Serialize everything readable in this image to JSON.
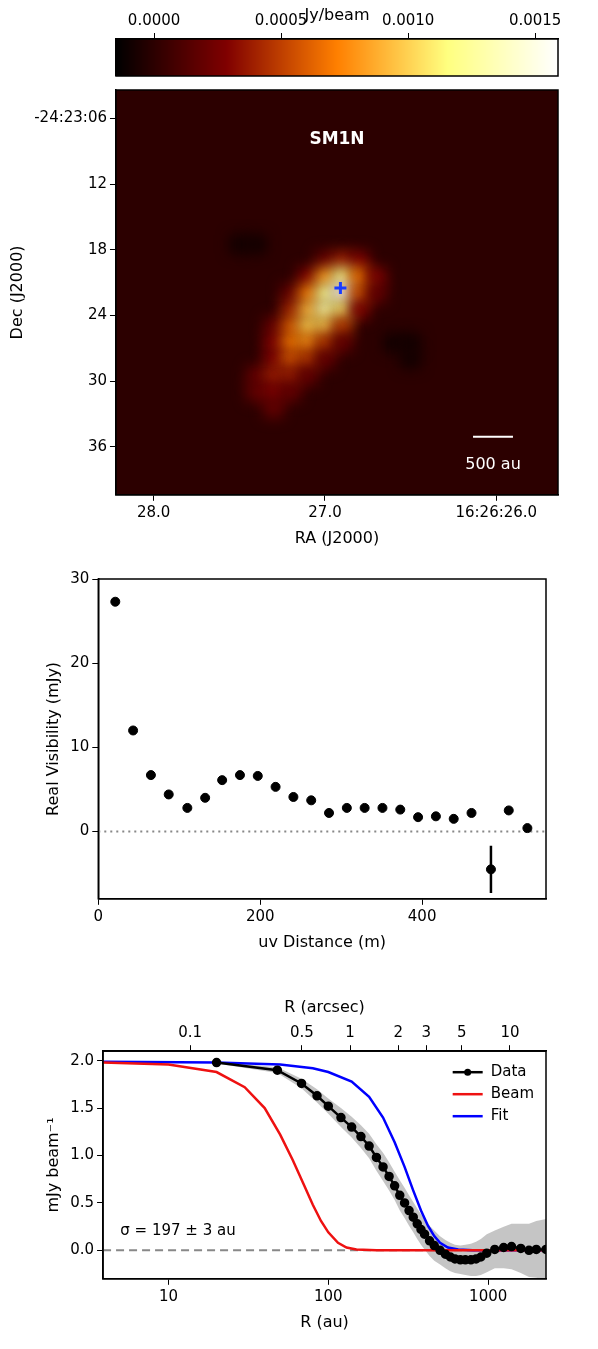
{
  "chart_data": [
    {
      "type": "heatmap",
      "title": "SM1N",
      "x_label": "RA (J2000)",
      "y_label": "Dec (J2000)",
      "xlim": [
        28.22,
        25.64
      ],
      "xticks": [
        {
          "value": 28,
          "label": "28.0"
        },
        {
          "value": 27,
          "label": "27.0"
        },
        {
          "value": 26,
          "label": "16:26:26.0"
        }
      ],
      "ylim": [
        40.4,
        3.4
      ],
      "yticks": [
        {
          "value": 6,
          "label": "-24:23:06"
        },
        {
          "value": 12,
          "label": "12"
        },
        {
          "value": 18,
          "label": "18"
        },
        {
          "value": 24,
          "label": "24"
        },
        {
          "value": 30,
          "label": "30"
        },
        {
          "value": 36,
          "label": "36"
        }
      ],
      "grid": false,
      "cells": [
        [
          27.5,
          17.5,
          -0.0001
        ],
        [
          27.4,
          17.5,
          -0.0001
        ],
        [
          27.0,
          19,
          0.0002
        ],
        [
          26.9,
          19,
          0.0004
        ],
        [
          26.8,
          19,
          0.0003
        ],
        [
          27.1,
          20.5,
          0.0003
        ],
        [
          27.0,
          20.5,
          0.0008
        ],
        [
          26.9,
          20.5,
          0.0012
        ],
        [
          26.8,
          20.5,
          0.0007
        ],
        [
          26.7,
          20.5,
          0.0003
        ],
        [
          27.2,
          22,
          0.0002
        ],
        [
          27.1,
          22,
          0.0007
        ],
        [
          27.0,
          22,
          0.0012
        ],
        [
          26.9,
          22,
          0.0016
        ],
        [
          26.8,
          22,
          0.0006
        ],
        [
          26.7,
          22,
          0.0002
        ],
        [
          27.2,
          23.5,
          0.0004
        ],
        [
          27.1,
          23.5,
          0.0009
        ],
        [
          27.0,
          23.5,
          0.0013
        ],
        [
          26.9,
          23.5,
          0.0011
        ],
        [
          26.8,
          23.5,
          0.0003
        ],
        [
          27.3,
          25,
          0.0002
        ],
        [
          27.2,
          25,
          0.0006
        ],
        [
          27.1,
          25,
          0.001
        ],
        [
          27.0,
          25,
          0.001
        ],
        [
          26.9,
          25,
          0.0005
        ],
        [
          27.3,
          26.5,
          0.0003
        ],
        [
          27.2,
          26.5,
          0.0007
        ],
        [
          27.1,
          26.5,
          0.0008
        ],
        [
          27.0,
          26.5,
          0.0005
        ],
        [
          26.9,
          26.5,
          0.0002
        ],
        [
          26.6,
          26.5,
          -0.0001
        ],
        [
          26.5,
          26.5,
          -0.0001
        ],
        [
          27.3,
          28,
          0.0003
        ],
        [
          27.2,
          28,
          0.0006
        ],
        [
          27.1,
          28,
          0.0005
        ],
        [
          27.0,
          28,
          0.0002
        ],
        [
          26.5,
          28,
          -0.0001
        ],
        [
          27.4,
          29.5,
          0.0002
        ],
        [
          27.3,
          29.5,
          0.0004
        ],
        [
          27.2,
          29.5,
          0.0004
        ],
        [
          27.1,
          29.5,
          0.0002
        ],
        [
          27.4,
          31,
          0.0002
        ],
        [
          27.3,
          31,
          0.0003
        ],
        [
          27.2,
          31,
          0.0002
        ],
        [
          27.3,
          32.5,
          0.0002
        ]
      ],
      "colorbar": {
        "label": "Jy/beam",
        "range": [
          -0.00015,
          0.00159
        ],
        "ticks": [
          {
            "value": 0,
            "label": "0.0000"
          },
          {
            "value": 0.0005,
            "label": "0.0005"
          },
          {
            "value": 0.001,
            "label": "0.0010"
          },
          {
            "value": 0.0015,
            "label": "0.0015"
          }
        ]
      },
      "peak": [
        26.91,
        21.5
      ],
      "peak_color": "#1a3cff",
      "scale_bar": {
        "label": "500 au",
        "length": 3.65
      }
    },
    {
      "type": "scatter",
      "x_label": "uv Distance (m)",
      "y_label": "Real Visibility (mJy)",
      "xlim": [
        0,
        553
      ],
      "xticks": [
        0,
        200,
        400
      ],
      "ylim": [
        -8,
        30
      ],
      "yticks": [
        0,
        10,
        20,
        30
      ],
      "grid": false,
      "hline": 0,
      "color": "#000000",
      "x": [
        21,
        43,
        65,
        87,
        110,
        132,
        153,
        175,
        197,
        219,
        241,
        263,
        285,
        307,
        329,
        351,
        373,
        395,
        417,
        439,
        461,
        485,
        507,
        530
      ],
      "values": [
        27.3,
        12,
        6.7,
        4.4,
        2.8,
        4,
        6.1,
        6.7,
        6.6,
        5.3,
        4.1,
        3.7,
        2.2,
        2.8,
        2.8,
        2.8,
        2.6,
        1.7,
        1.8,
        1.5,
        2.2,
        -4.5,
        2.5,
        0.4
      ],
      "errors": [
        0.3,
        0.3,
        0.3,
        0.3,
        0.3,
        0.3,
        0.3,
        0.3,
        0.3,
        0.3,
        0.3,
        0.3,
        0.3,
        0.3,
        0.3,
        0.3,
        0.3,
        0.3,
        0.3,
        0.3,
        0.3,
        2.8,
        0.3,
        0.3
      ]
    },
    {
      "type": "line",
      "x_label": "R (au)",
      "x2_label": "R (arcsec)",
      "y_label": "mJy beam⁻¹",
      "log": "x",
      "xlim": [
        3.9,
        2300
      ],
      "xticks": [
        10,
        100,
        1000
      ],
      "x2lim": [
        0.0285,
        16.8
      ],
      "x2ticks": [
        0.1,
        0.5,
        1,
        2,
        3,
        5,
        10
      ],
      "ylim": [
        -0.3,
        2.1
      ],
      "yticks": [
        {
          "value": 0,
          "label": "0.0"
        },
        {
          "value": 0.5,
          "label": "0.5"
        },
        {
          "value": 1,
          "label": "1.0"
        },
        {
          "value": 1.5,
          "label": "1.5"
        },
        {
          "value": 2,
          "label": "2.0"
        }
      ],
      "grid": false,
      "hline": 0,
      "legend": "upper right",
      "annotations": [
        {
          "text": "σ = 197 ± 3 au",
          "x": 5,
          "y": 0.2
        }
      ],
      "series": [
        {
          "name": "Data",
          "color": "#000000",
          "marker": "o",
          "x": [
            20,
            48,
            68,
            85,
            100,
            120,
            140,
            160,
            180,
            200,
            220,
            240,
            260,
            280,
            300,
            320,
            340,
            360,
            380,
            400,
            430,
            460,
            500,
            540,
            580,
            620,
            670,
            720,
            780,
            840,
            900,
            980,
            1100,
            1250,
            1400,
            1600,
            1800,
            2000,
            2300
          ],
          "values": [
            1.98,
            1.9,
            1.76,
            1.63,
            1.52,
            1.4,
            1.3,
            1.2,
            1.1,
            0.98,
            0.88,
            0.78,
            0.68,
            0.58,
            0.5,
            0.42,
            0.35,
            0.28,
            0.22,
            0.17,
            0.1,
            0.05,
            0,
            -0.04,
            -0.07,
            -0.09,
            -0.1,
            -0.1,
            -0.1,
            -0.09,
            -0.07,
            -0.03,
            0.01,
            0.03,
            0.04,
            0.02,
            0,
            0.01,
            0.01
          ],
          "errors": [
            0.01,
            0.03,
            0.05,
            0.07,
            0.08,
            0.1,
            0.11,
            0.12,
            0.13,
            0.14,
            0.15,
            0.15,
            0.15,
            0.16,
            0.16,
            0.16,
            0.16,
            0.16,
            0.16,
            0.16,
            0.16,
            0.16,
            0.15,
            0.15,
            0.15,
            0.15,
            0.15,
            0.16,
            0.17,
            0.18,
            0.19,
            0.2,
            0.2,
            0.22,
            0.24,
            0.26,
            0.28,
            0.3,
            0.32
          ]
        },
        {
          "name": "Beam",
          "color": "#ee1111",
          "x": [
            3.9,
            10,
            20,
            30,
            40,
            50,
            60,
            70,
            80,
            90,
            100,
            115,
            130,
            150,
            200,
            500,
            2300
          ],
          "values": [
            1.98,
            1.96,
            1.88,
            1.72,
            1.5,
            1.22,
            0.95,
            0.7,
            0.48,
            0.31,
            0.19,
            0.08,
            0.03,
            0.01,
            0,
            0,
            0
          ]
        },
        {
          "name": "Fit",
          "color": "#0000ff",
          "x": [
            3.9,
            20,
            50,
            80,
            100,
            140,
            180,
            220,
            260,
            300,
            340,
            380,
            420,
            460,
            500,
            560,
            650,
            800,
            2300
          ],
          "values": [
            1.99,
            1.98,
            1.96,
            1.92,
            1.88,
            1.78,
            1.62,
            1.4,
            1.14,
            0.88,
            0.63,
            0.42,
            0.26,
            0.15,
            0.08,
            0.03,
            0.01,
            0,
            0
          ]
        }
      ]
    }
  ]
}
